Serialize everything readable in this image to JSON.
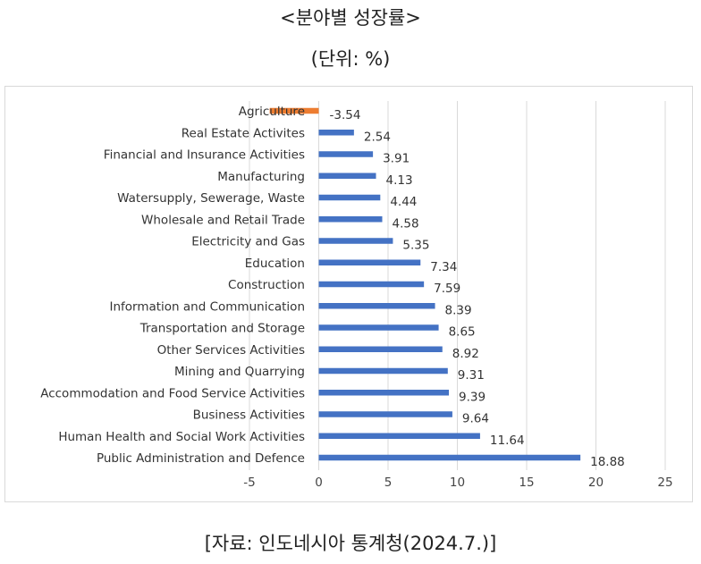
{
  "header": {
    "title": "<분야별 성장률>",
    "unit": "(단위: %)"
  },
  "footer": {
    "source": "[자료: 인도네시아 통계청(2024.7.)]"
  },
  "colors": {
    "positive_bar": "#4472c4",
    "negative_bar": "#ed7d31",
    "grid": "#d9d9d9"
  },
  "chart_data": {
    "type": "bar",
    "orientation": "horizontal",
    "categories": [
      "Agriculture",
      "Real Estate Activites",
      "Financial and Insurance Activities",
      "Manufacturing",
      "Watersupply, Sewerage, Waste",
      "Wholesale and Retail Trade",
      "Electricity and Gas",
      "Education",
      "Construction",
      "Information and Communication",
      "Transportation and Storage",
      "Other Services Activities",
      "Mining and Quarrying",
      "Accommodation and Food Service Activities",
      "Business Activities",
      "Human Health and Social Work Activities",
      "Public Administration and Defence"
    ],
    "values": [
      -3.54,
      2.54,
      3.91,
      4.13,
      4.44,
      4.58,
      5.35,
      7.34,
      7.59,
      8.39,
      8.65,
      8.92,
      9.31,
      9.39,
      9.64,
      11.64,
      18.88
    ],
    "value_labels": [
      "-3.54",
      "2.54",
      "3.91",
      "4.13",
      "4.44",
      "4.58",
      "5.35",
      "7.34",
      "7.59",
      "8.39",
      "8.65",
      "8.92",
      "9.31",
      "9.39",
      "9.64",
      "11.64",
      "18.88"
    ],
    "xlim": [
      -5,
      25
    ],
    "xticks": [
      -5,
      0,
      5,
      10,
      15,
      20,
      25
    ],
    "xtick_labels": [
      "-5",
      "0",
      "5",
      "10",
      "15",
      "20",
      "25"
    ],
    "grid": "vertical",
    "legend": "none"
  }
}
